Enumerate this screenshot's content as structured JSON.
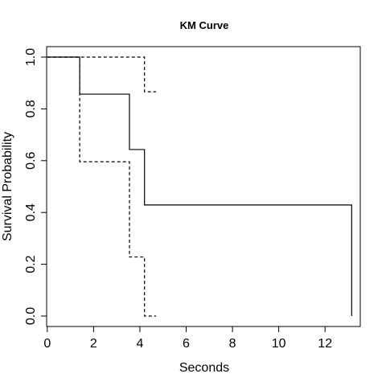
{
  "chart_data": {
    "type": "line",
    "title": "KM Curve",
    "xlabel": "Seconds",
    "ylabel": "Survival Probability",
    "xlim": [
      0,
      13.5
    ],
    "ylim": [
      -0.02,
      1.04
    ],
    "x_ticks": [
      0,
      2,
      4,
      6,
      8,
      10,
      12
    ],
    "y_ticks": [
      0.0,
      0.2,
      0.4,
      0.6,
      0.8,
      1.0
    ],
    "x_tick_labels": [
      "0",
      "2",
      "4",
      "6",
      "8",
      "10",
      "12"
    ],
    "y_tick_labels": [
      "0.0",
      "0.2",
      "0.4",
      "0.6",
      "0.8",
      "1.0"
    ],
    "grid": false,
    "legend": "none",
    "series": [
      {
        "style": "solid",
        "step_x": [
          0,
          1.4,
          3.55,
          4.2,
          13.15
        ],
        "step_y": [
          1.0,
          0.857,
          0.643,
          0.429,
          0.429
        ],
        "drop_to": 0.0
      },
      {
        "style": "dashed",
        "step_x": [
          0,
          1.4,
          3.55,
          4.2,
          4.7
        ],
        "step_y": [
          1.0,
          0.596,
          0.228,
          0.0,
          0.0
        ]
      },
      {
        "style": "dashed",
        "step_x": [
          0,
          4.2,
          4.7
        ],
        "step_y": [
          1.0,
          0.866,
          0.866
        ]
      }
    ]
  }
}
